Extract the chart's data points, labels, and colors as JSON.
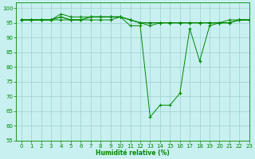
{
  "xlabel": "Humidité relative (%)",
  "xlim": [
    -0.5,
    23
  ],
  "ylim": [
    55,
    102
  ],
  "yticks": [
    55,
    60,
    65,
    70,
    75,
    80,
    85,
    90,
    95,
    100
  ],
  "xticks": [
    0,
    1,
    2,
    3,
    4,
    5,
    6,
    7,
    8,
    9,
    10,
    11,
    12,
    13,
    14,
    15,
    16,
    17,
    18,
    19,
    20,
    21,
    22,
    23
  ],
  "bg_color": "#c8f0f0",
  "grid_color": "#9ecece",
  "line_color": "#008800",
  "marker": "+",
  "series": [
    [
      96,
      96,
      96,
      96,
      96,
      96,
      96,
      96,
      96,
      96,
      97,
      94,
      94,
      63,
      67,
      67,
      71,
      93,
      82,
      94,
      95,
      96,
      96,
      96
    ],
    [
      96,
      96,
      96,
      96,
      98,
      97,
      97,
      97,
      97,
      97,
      97,
      96,
      95,
      94,
      95,
      95,
      95,
      95,
      95,
      95,
      95,
      95,
      96,
      96
    ],
    [
      96,
      96,
      96,
      96,
      97,
      96,
      96,
      97,
      97,
      97,
      97,
      96,
      95,
      95,
      95,
      95,
      95,
      95,
      95,
      95,
      95,
      95,
      96,
      96
    ],
    [
      96,
      96,
      96,
      96,
      97,
      96,
      96,
      97,
      97,
      97,
      97,
      96,
      95,
      95,
      95,
      95,
      95,
      95,
      95,
      95,
      95,
      95,
      96,
      96
    ]
  ]
}
